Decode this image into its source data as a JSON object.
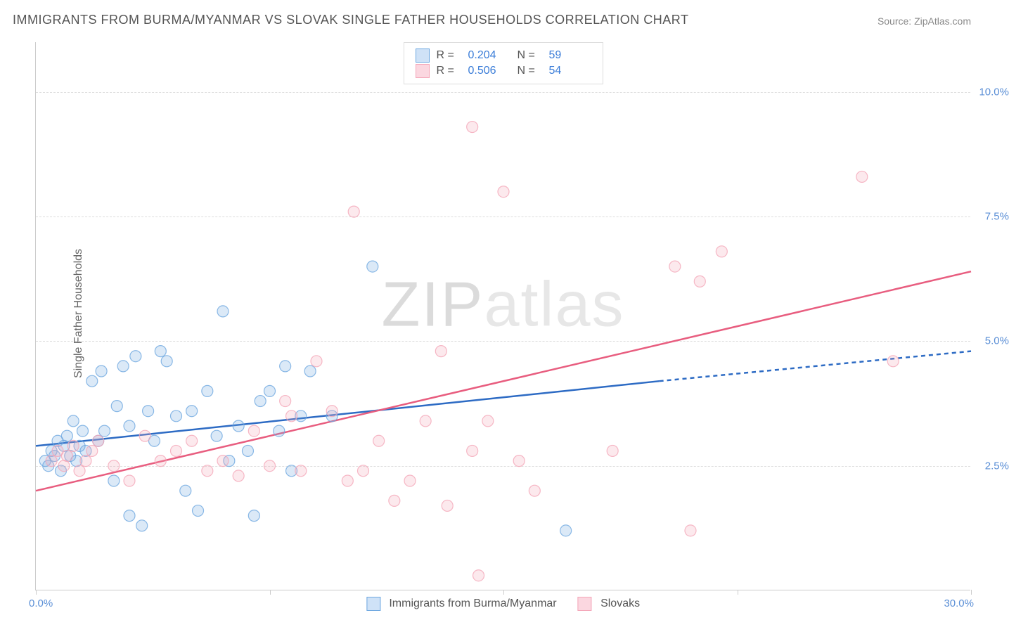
{
  "title": "IMMIGRANTS FROM BURMA/MYANMAR VS SLOVAK SINGLE FATHER HOUSEHOLDS CORRELATION CHART",
  "source": "Source: ZipAtlas.com",
  "y_axis_title": "Single Father Households",
  "watermark_1": "ZIP",
  "watermark_2": "atlas",
  "chart": {
    "type": "scatter",
    "xlim": [
      0,
      30
    ],
    "ylim": [
      0,
      11
    ],
    "x_tick_positions": [
      0,
      7.5,
      15,
      22.5,
      30
    ],
    "x_labels": {
      "min": "0.0%",
      "max": "30.0%"
    },
    "y_grid": [
      {
        "v": 2.5,
        "label": "2.5%"
      },
      {
        "v": 5.0,
        "label": "5.0%"
      },
      {
        "v": 7.5,
        "label": "7.5%"
      },
      {
        "v": 10.0,
        "label": "10.0%"
      }
    ],
    "background_color": "#ffffff",
    "grid_color": "#dddddd",
    "marker_radius": 8,
    "marker_fill_opacity": 0.25,
    "marker_stroke_opacity": 0.8,
    "line_width": 2.5,
    "series": [
      {
        "name": "Immigrants from Burma/Myanmar",
        "color": "#6ea8e0",
        "line_color": "#2d6bc4",
        "R": "0.204",
        "N": "59",
        "trend": {
          "x1": 0,
          "y1": 2.9,
          "x2": 20,
          "y2": 4.2,
          "ext_x2": 30,
          "ext_y2": 4.8
        },
        "points": [
          [
            0.3,
            2.6
          ],
          [
            0.5,
            2.8
          ],
          [
            0.4,
            2.5
          ],
          [
            0.6,
            2.7
          ],
          [
            0.7,
            3.0
          ],
          [
            0.8,
            2.4
          ],
          [
            0.9,
            2.9
          ],
          [
            1.0,
            3.1
          ],
          [
            1.1,
            2.7
          ],
          [
            1.2,
            3.4
          ],
          [
            1.3,
            2.6
          ],
          [
            1.4,
            2.9
          ],
          [
            1.5,
            3.2
          ],
          [
            1.6,
            2.8
          ],
          [
            1.8,
            4.2
          ],
          [
            2.0,
            3.0
          ],
          [
            2.1,
            4.4
          ],
          [
            2.2,
            3.2
          ],
          [
            2.5,
            2.2
          ],
          [
            2.6,
            3.7
          ],
          [
            2.8,
            4.5
          ],
          [
            3.0,
            1.5
          ],
          [
            3.0,
            3.3
          ],
          [
            3.2,
            4.7
          ],
          [
            3.4,
            1.3
          ],
          [
            3.6,
            3.6
          ],
          [
            3.8,
            3.0
          ],
          [
            4.0,
            4.8
          ],
          [
            4.2,
            4.6
          ],
          [
            4.5,
            3.5
          ],
          [
            4.8,
            2.0
          ],
          [
            5.0,
            3.6
          ],
          [
            5.2,
            1.6
          ],
          [
            5.5,
            4.0
          ],
          [
            5.8,
            3.1
          ],
          [
            6.0,
            5.6
          ],
          [
            6.2,
            2.6
          ],
          [
            6.5,
            3.3
          ],
          [
            6.8,
            2.8
          ],
          [
            7.0,
            1.5
          ],
          [
            7.2,
            3.8
          ],
          [
            7.5,
            4.0
          ],
          [
            7.8,
            3.2
          ],
          [
            8.0,
            4.5
          ],
          [
            8.2,
            2.4
          ],
          [
            8.5,
            3.5
          ],
          [
            8.8,
            4.4
          ],
          [
            9.5,
            3.5
          ],
          [
            10.8,
            6.5
          ],
          [
            17.0,
            1.2
          ]
        ]
      },
      {
        "name": "Slovaks",
        "color": "#f4a6b8",
        "line_color": "#e85d7f",
        "R": "0.506",
        "N": "54",
        "trend": {
          "x1": 0,
          "y1": 2.0,
          "x2": 30,
          "y2": 6.4
        },
        "points": [
          [
            0.5,
            2.6
          ],
          [
            0.7,
            2.8
          ],
          [
            0.9,
            2.5
          ],
          [
            1.0,
            2.7
          ],
          [
            1.2,
            2.9
          ],
          [
            1.4,
            2.4
          ],
          [
            1.6,
            2.6
          ],
          [
            1.8,
            2.8
          ],
          [
            2.0,
            3.0
          ],
          [
            2.5,
            2.5
          ],
          [
            3.0,
            2.2
          ],
          [
            3.5,
            3.1
          ],
          [
            4.0,
            2.6
          ],
          [
            4.5,
            2.8
          ],
          [
            5.0,
            3.0
          ],
          [
            5.5,
            2.4
          ],
          [
            6.0,
            2.6
          ],
          [
            6.5,
            2.3
          ],
          [
            7.0,
            3.2
          ],
          [
            7.5,
            2.5
          ],
          [
            8.0,
            3.8
          ],
          [
            8.2,
            3.5
          ],
          [
            8.5,
            2.4
          ],
          [
            9.0,
            4.6
          ],
          [
            9.5,
            3.6
          ],
          [
            10.0,
            2.2
          ],
          [
            10.2,
            7.6
          ],
          [
            10.5,
            2.4
          ],
          [
            11.0,
            3.0
          ],
          [
            11.5,
            1.8
          ],
          [
            12.0,
            2.2
          ],
          [
            12.5,
            3.4
          ],
          [
            13.0,
            4.8
          ],
          [
            13.2,
            1.7
          ],
          [
            14.0,
            2.8
          ],
          [
            14.0,
            9.3
          ],
          [
            14.2,
            0.3
          ],
          [
            14.5,
            3.4
          ],
          [
            15.0,
            8.0
          ],
          [
            15.5,
            2.6
          ],
          [
            16.0,
            2.0
          ],
          [
            18.5,
            2.8
          ],
          [
            20.5,
            6.5
          ],
          [
            21.0,
            1.2
          ],
          [
            21.3,
            6.2
          ],
          [
            22.0,
            6.8
          ],
          [
            26.5,
            8.3
          ],
          [
            27.5,
            4.6
          ]
        ]
      }
    ]
  },
  "legend_top_labels": {
    "R": "R =",
    "N": "N ="
  },
  "legend_bottom": [
    {
      "label": "Immigrants from Burma/Myanmar",
      "fill": "#cfe2f7",
      "stroke": "#6ea8e0"
    },
    {
      "label": "Slovaks",
      "fill": "#fbd7e0",
      "stroke": "#f4a6b8"
    }
  ]
}
